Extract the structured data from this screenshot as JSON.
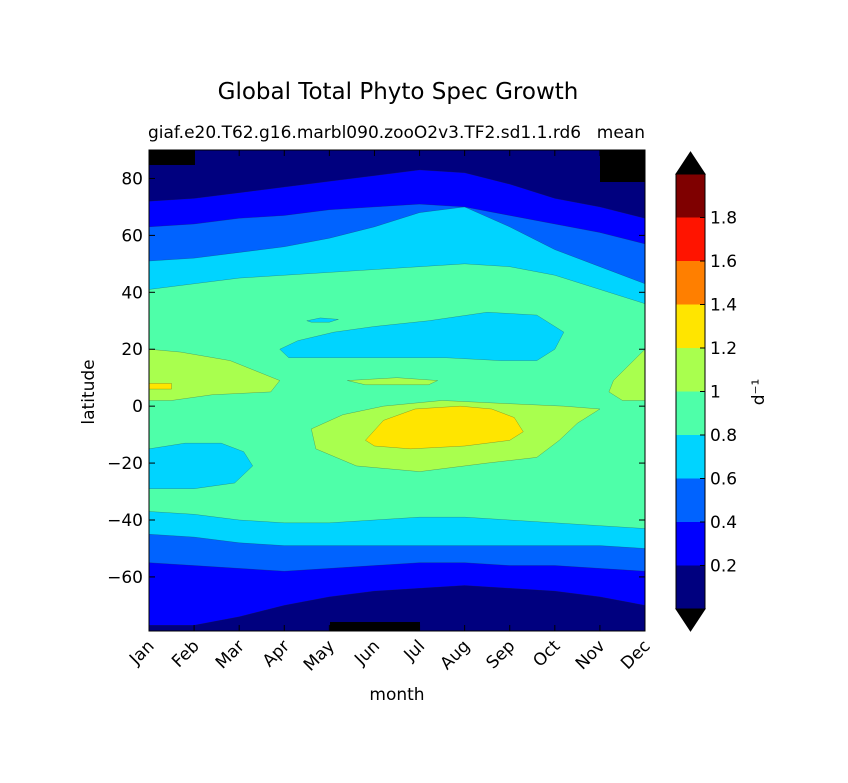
{
  "chart_data": {
    "type": "contour",
    "title": "Global Total Phyto Spec Growth",
    "subtitle_left": "giaf.e20.T62.g16.marbl090.zooO2v3.TF2.sd1.1.rd6",
    "subtitle_right": "mean",
    "xlabel": "month",
    "ylabel": "latitude",
    "x_categories": [
      "Jan",
      "Feb",
      "Mar",
      "Apr",
      "May",
      "Jun",
      "Jul",
      "Aug",
      "Sep",
      "Oct",
      "Nov",
      "Dec"
    ],
    "ylim": [
      -79,
      90
    ],
    "y_ticks": [
      80,
      60,
      40,
      20,
      0,
      -20,
      -40,
      -60
    ],
    "y_tick_labels": [
      "80",
      "60",
      "40",
      "20",
      "0",
      "−20",
      "−40",
      "−60"
    ],
    "colorbar": {
      "label": "d⁻¹",
      "levels": [
        0,
        0.2,
        0.4,
        0.6,
        0.8,
        1.0,
        1.2,
        1.4,
        1.6,
        1.8,
        2.0
      ],
      "tick_values": [
        0.2,
        0.4,
        0.6,
        0.8,
        1.0,
        1.2,
        1.4,
        1.6,
        1.8
      ],
      "tick_labels": [
        "0.2",
        "0.4",
        "0.6",
        "0.8",
        "1",
        "1.2",
        "1.4",
        "1.6",
        "1.8"
      ],
      "colors": [
        "#00007f",
        "#0000ff",
        "#0063ff",
        "#00d4ff",
        "#4effa9",
        "#a9ff4e",
        "#ffe500",
        "#ff7f00",
        "#ff1400",
        "#7f0000"
      ],
      "extend": "both",
      "extend_low_color": "#000000",
      "extend_high_color": "#000000"
    },
    "bands_by_month": {
      "description": "Approximate latitude boundaries (degrees) where growth-rate class changes, per month Jan..Dec",
      "north": {
        "lt_0.2": [
          72,
          73,
          75,
          77,
          79,
          81,
          83,
          82,
          78,
          73,
          70,
          66
        ],
        "0.2_0.4": [
          63,
          64,
          66,
          67,
          69,
          70,
          71,
          70,
          67,
          64,
          61,
          57
        ],
        "0.4_0.6": [
          51,
          52,
          54,
          56,
          59,
          63,
          68,
          70,
          63,
          55,
          49,
          43
        ],
        "0.6_0.8": [
          41,
          43,
          45,
          46,
          47,
          48,
          49,
          50,
          49,
          46,
          41,
          36
        ]
      },
      "south": {
        "0.8_0.6": [
          -37,
          -38,
          -40,
          -41,
          -41,
          -40,
          -39,
          -39,
          -40,
          -41,
          -42,
          -43
        ],
        "0.6_0.4": [
          -45,
          -46,
          -48,
          -49,
          -49,
          -49,
          -49,
          -49,
          -49,
          -49,
          -49,
          -50
        ],
        "0.4_0.2": [
          -55,
          -56,
          -57,
          -58,
          -57,
          -56,
          -55,
          -55,
          -56,
          -56,
          -57,
          -58
        ],
        "0.2_0.0": [
          -77,
          -77,
          -74,
          -70,
          -67,
          -65,
          -64,
          -63,
          -64,
          -65,
          -67,
          -70
        ]
      }
    }
  }
}
